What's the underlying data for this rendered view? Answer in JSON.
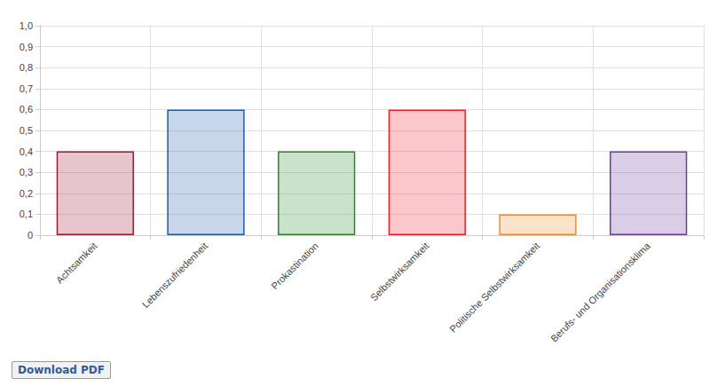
{
  "chart_data": {
    "type": "bar",
    "categories": [
      "Achtsamkeit",
      "Lebenszufriedenheit",
      "Prokastination",
      "Selbstwirksamkeit",
      "Politische Selbstwirksamkeit",
      "Berufs- und Organisationsklima"
    ],
    "values": [
      0.4,
      0.6,
      0.4,
      0.6,
      0.1,
      0.4
    ],
    "colors": [
      "#9b1b30",
      "#1f5aa6",
      "#2a8a2a",
      "#f0202a",
      "#f08a30",
      "#6a3d9a"
    ],
    "ylim": [
      0,
      1
    ],
    "yticks": [
      0,
      {
        "value": 0.1,
        "label": "0,1"
      },
      {
        "value": 0.2,
        "label": "0,2"
      },
      {
        "value": 0.3,
        "label": "0,3"
      },
      {
        "value": 0.4,
        "label": "0,4"
      },
      {
        "value": 0.5,
        "label": "0,5"
      },
      {
        "value": 0.6,
        "label": "0,6"
      },
      {
        "value": 0.7,
        "label": "0,7"
      },
      {
        "value": 0.8,
        "label": "0,8"
      },
      {
        "value": 0.9,
        "label": "0,9"
      },
      {
        "value": 1,
        "label": "1,0"
      }
    ],
    "grid": true
  },
  "button": "Download PDF"
}
